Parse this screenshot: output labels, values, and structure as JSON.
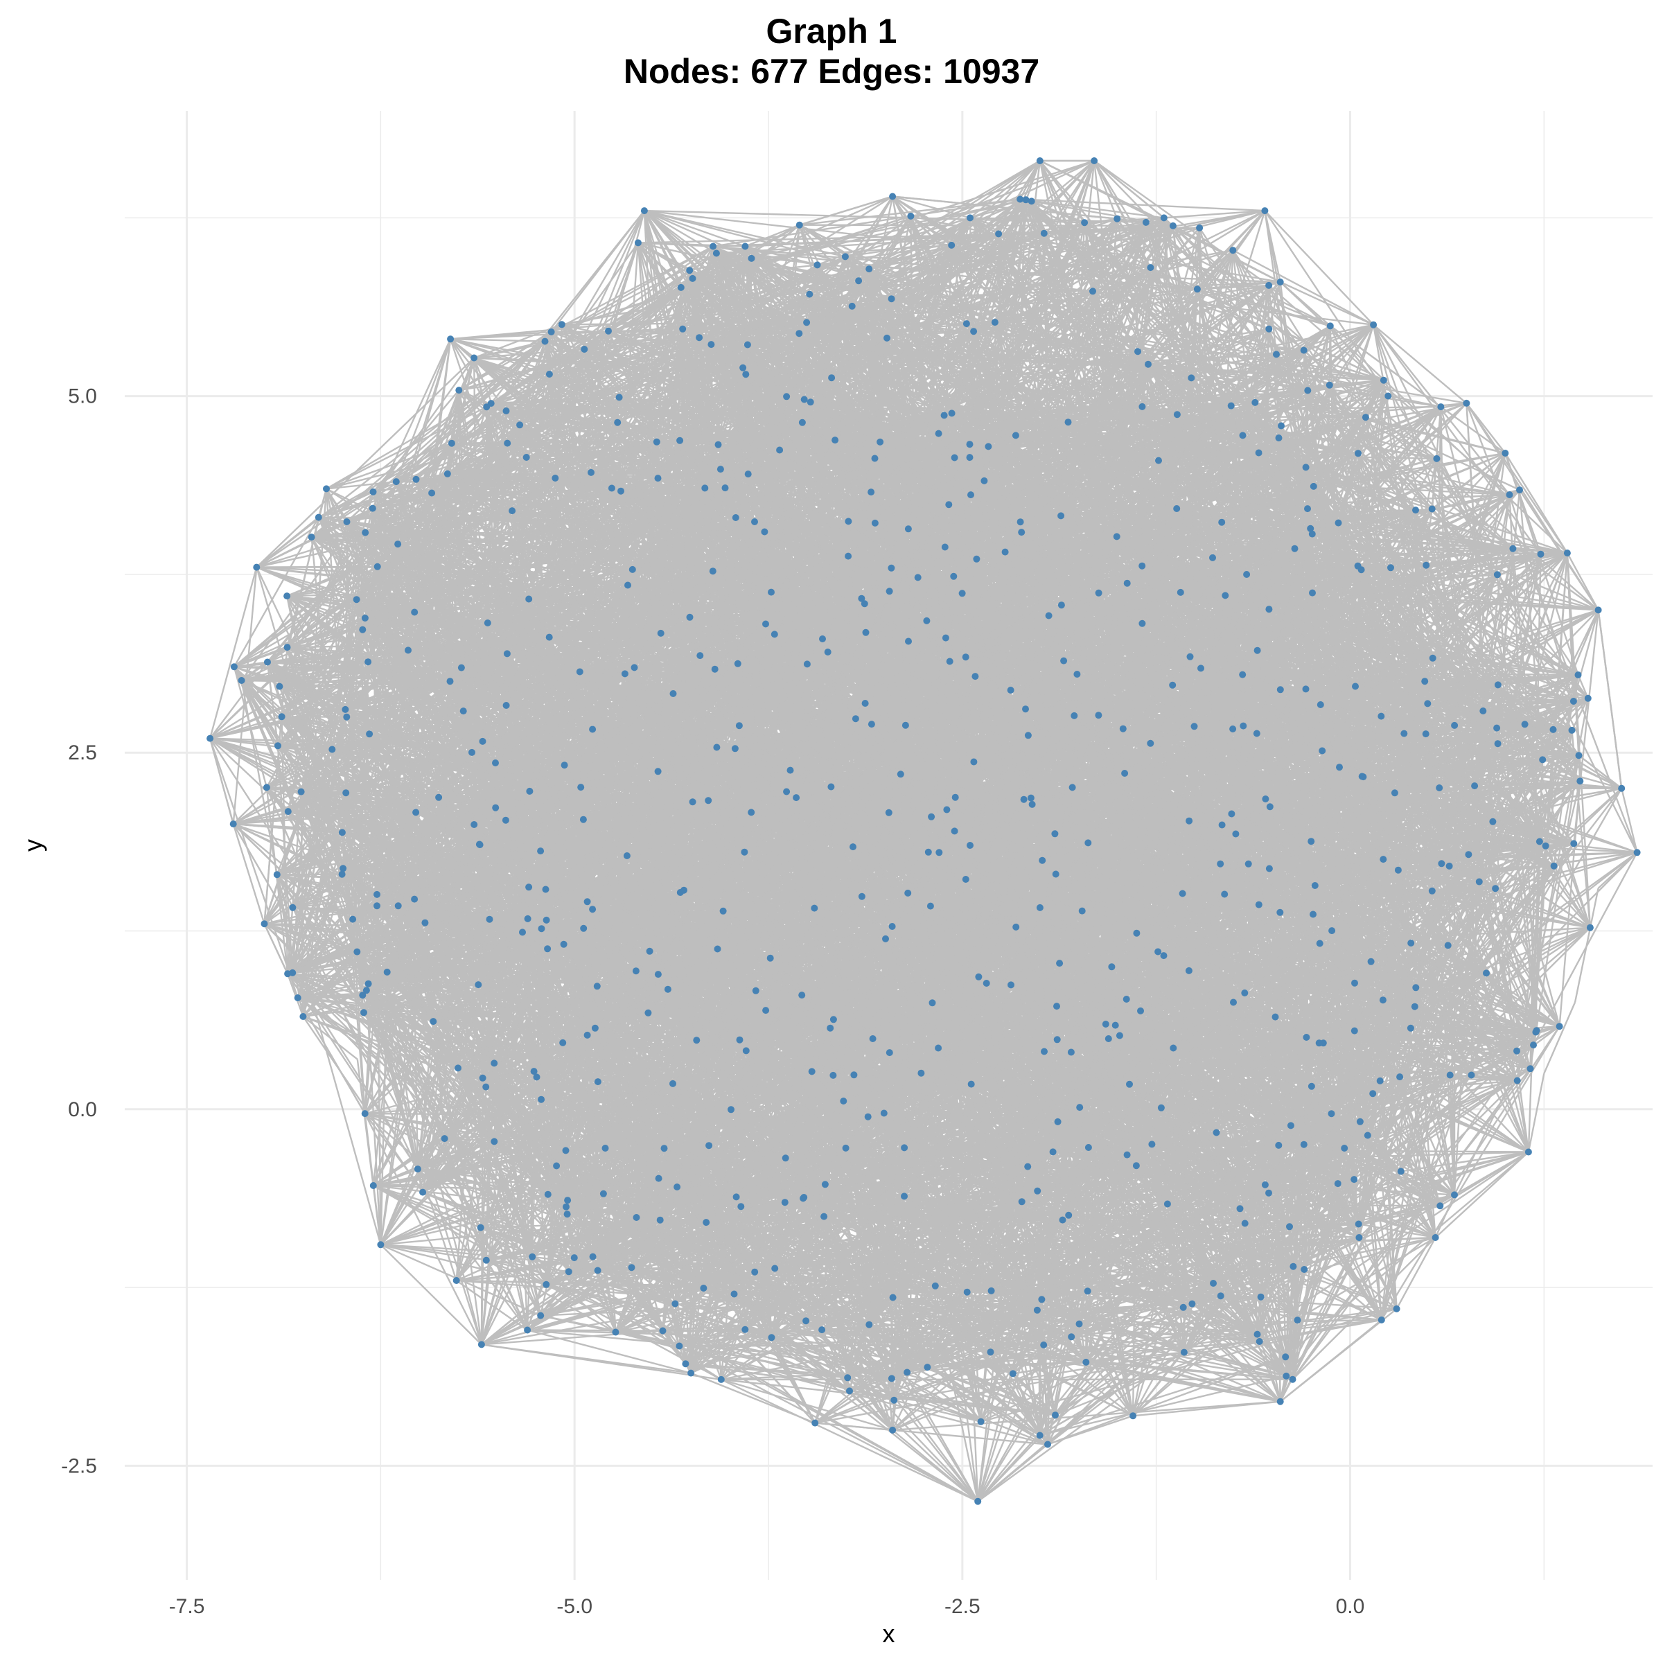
{
  "chart_data": {
    "type": "scatter",
    "title": "Graph 1",
    "subtitle": "Nodes: 677 Edges: 10937",
    "xlabel": "x",
    "ylabel": "y",
    "xlim": [
      -7.9,
      1.95
    ],
    "ylim": [
      -3.3,
      7.0
    ],
    "x_ticks": [
      -7.5,
      -5.0,
      -2.5,
      0.0
    ],
    "x_tick_labels": [
      "-7.5",
      "-5.0",
      "-2.5",
      "0.0"
    ],
    "y_ticks": [
      -2.5,
      0.0,
      2.5,
      5.0
    ],
    "y_tick_labels": [
      "-2.5",
      "0.0",
      "2.5",
      "5.0"
    ],
    "grid": true,
    "legend": "none",
    "point_color": "#4682b4",
    "edge_color": "#bebebe",
    "nodes": 677,
    "edges": 10937,
    "hull_points": [
      [
        -4.55,
        6.3
      ],
      [
        -3.9,
        6.05
      ],
      [
        -3.55,
        6.2
      ],
      [
        -2.95,
        6.4
      ],
      [
        -2.45,
        6.25
      ],
      [
        -2.0,
        6.65
      ],
      [
        -1.65,
        6.65
      ],
      [
        -1.2,
        6.25
      ],
      [
        -0.55,
        6.3
      ],
      [
        -0.45,
        5.8
      ],
      [
        0.15,
        5.5
      ],
      [
        0.75,
        4.95
      ],
      [
        1.0,
        4.6
      ],
      [
        1.4,
        3.9
      ],
      [
        1.6,
        3.5
      ],
      [
        1.75,
        2.25
      ],
      [
        1.85,
        1.8
      ],
      [
        1.6,
        1.55
      ],
      [
        1.45,
        0.75
      ],
      [
        1.25,
        0.25
      ],
      [
        1.15,
        -0.3
      ],
      [
        0.55,
        -0.9
      ],
      [
        0.3,
        -1.4
      ],
      [
        -0.45,
        -2.05
      ],
      [
        -1.4,
        -2.15
      ],
      [
        -1.95,
        -2.35
      ],
      [
        -2.4,
        -2.75
      ],
      [
        -2.95,
        -2.25
      ],
      [
        -3.45,
        -2.2
      ],
      [
        -4.25,
        -1.85
      ],
      [
        -5.6,
        -1.65
      ],
      [
        -6.25,
        -0.95
      ],
      [
        -6.4,
        0.35
      ],
      [
        -6.75,
        0.65
      ],
      [
        -6.85,
        0.95
      ],
      [
        -7.0,
        1.3
      ],
      [
        -7.2,
        2.0
      ],
      [
        -7.35,
        2.6
      ],
      [
        -7.05,
        3.8
      ],
      [
        -6.65,
        4.15
      ],
      [
        -6.6,
        4.35
      ],
      [
        -6.15,
        4.4
      ],
      [
        -5.8,
        5.4
      ],
      [
        -5.15,
        5.45
      ]
    ],
    "visible_nodes": [
      [
        -7.35,
        2.6
      ],
      [
        -7.2,
        2.0
      ],
      [
        -7.05,
        3.8
      ],
      [
        -7.0,
        1.3
      ],
      [
        -6.85,
        0.95
      ],
      [
        -6.75,
        0.65
      ],
      [
        -6.6,
        4.35
      ],
      [
        -6.65,
        4.15
      ],
      [
        -6.25,
        -0.95
      ],
      [
        -6.15,
        4.4
      ],
      [
        -5.8,
        5.4
      ],
      [
        -5.6,
        -1.65
      ],
      [
        -5.15,
        5.45
      ],
      [
        -4.55,
        6.3
      ],
      [
        -3.9,
        6.05
      ],
      [
        -3.55,
        6.2
      ],
      [
        -2.95,
        6.4
      ],
      [
        -2.45,
        6.25
      ],
      [
        -2.0,
        6.65
      ],
      [
        -1.65,
        6.65
      ],
      [
        -1.2,
        6.25
      ],
      [
        -0.55,
        6.3
      ],
      [
        -0.45,
        5.8
      ],
      [
        0.15,
        5.5
      ],
      [
        0.75,
        4.95
      ],
      [
        1.0,
        4.6
      ],
      [
        1.4,
        3.9
      ],
      [
        1.6,
        3.5
      ],
      [
        1.75,
        2.25
      ],
      [
        1.85,
        1.8
      ],
      [
        1.15,
        -0.3
      ],
      [
        0.55,
        -0.9
      ],
      [
        0.3,
        -1.4
      ],
      [
        -0.45,
        -2.05
      ],
      [
        -1.4,
        -2.15
      ],
      [
        -1.95,
        -2.35
      ],
      [
        -2.4,
        -2.75
      ],
      [
        -2.95,
        -2.25
      ],
      [
        -3.45,
        -2.2
      ],
      [
        -4.25,
        -1.85
      ],
      [
        -2.6,
        2.1
      ],
      [
        -2.55,
        1.95
      ],
      [
        -2.7,
        2.05
      ],
      [
        -2.45,
        1.85
      ],
      [
        -2.65,
        1.8
      ]
    ],
    "random_seed": 1
  }
}
